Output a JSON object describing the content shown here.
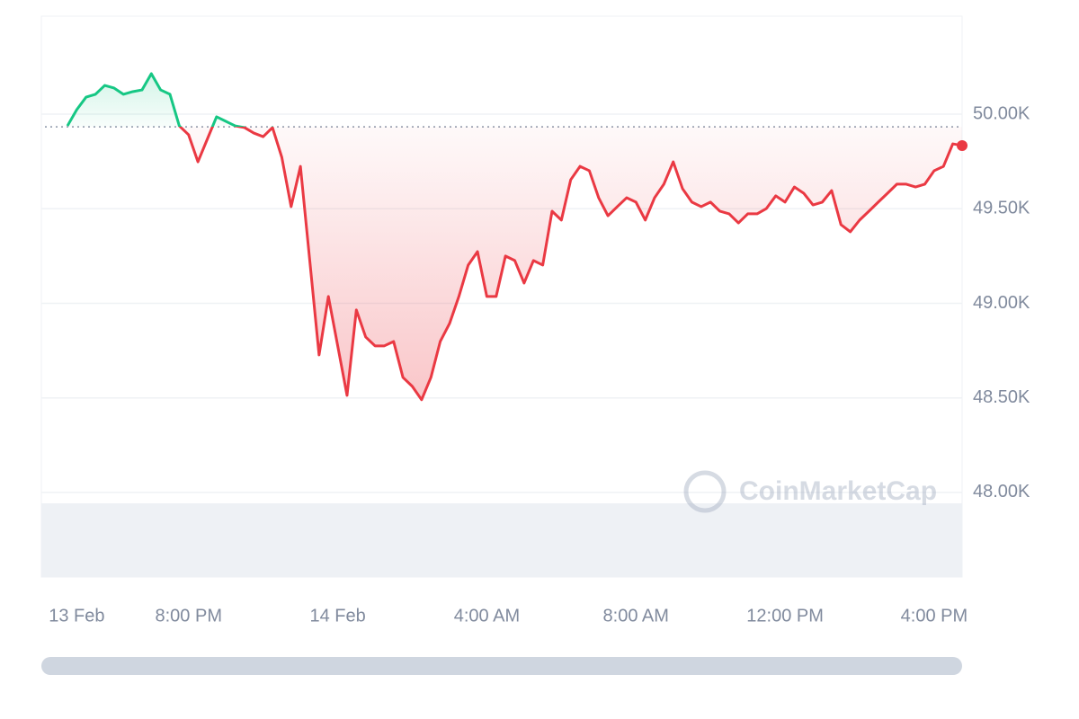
{
  "chart_data": {
    "type": "line",
    "watermark": "CoinMarketCap",
    "x": [
      16.75,
      17,
      17.25,
      17.5,
      17.75,
      18,
      18.25,
      18.5,
      18.75,
      19,
      19.25,
      19.5,
      19.75,
      20,
      20.25,
      20.5,
      20.75,
      21,
      21.25,
      21.5,
      21.75,
      22,
      22.25,
      22.5,
      22.75,
      23,
      23.25,
      23.5,
      23.75,
      24,
      24.25,
      24.5,
      24.75,
      25,
      25.25,
      25.5,
      25.75,
      26,
      26.25,
      26.5,
      26.75,
      27,
      27.25,
      27.5,
      27.75,
      28,
      28.25,
      28.5,
      28.75,
      29,
      29.25,
      29.5,
      29.75,
      30,
      30.25,
      30.5,
      30.75,
      31,
      31.25,
      31.5,
      31.75,
      32,
      32.25,
      32.5,
      32.75,
      33,
      33.25,
      33.5,
      33.75,
      34,
      34.25,
      34.5,
      34.75,
      35,
      35.25,
      35.5,
      35.75,
      36,
      36.25,
      36.5,
      36.75,
      37,
      37.25,
      37.5,
      37.75,
      38,
      38.25,
      38.5,
      38.75,
      39,
      39.25,
      39.5,
      39.75,
      40,
      40.25,
      40.5,
      40.75
    ],
    "values": [
      49938,
      50024,
      50090,
      50105,
      50152,
      50138,
      50105,
      50119,
      50128,
      50214,
      50128,
      50105,
      49938,
      49891,
      49748,
      49867,
      49986,
      49962,
      49938,
      49929,
      49900,
      49881,
      49929,
      49772,
      49511,
      49724,
      49226,
      48727,
      49036,
      48775,
      48513,
      48965,
      48822,
      48775,
      48775,
      48798,
      48608,
      48561,
      48490,
      48608,
      48798,
      48893,
      49036,
      49202,
      49273,
      49036,
      49036,
      49250,
      49226,
      49107,
      49226,
      49202,
      49487,
      49440,
      49653,
      49724,
      49701,
      49558,
      49463,
      49511,
      49558,
      49535,
      49440,
      49558,
      49630,
      49748,
      49606,
      49535,
      49511,
      49535,
      49487,
      49473,
      49425,
      49473,
      49473,
      49501,
      49568,
      49535,
      49615,
      49582,
      49520,
      49535,
      49596,
      49416,
      49378,
      49440,
      49487,
      49535,
      49582,
      49630,
      49630,
      49615,
      49630,
      49701,
      49724,
      49843,
      49834
    ],
    "baseline": 49933,
    "up_color": "#16c784",
    "down_color": "#ea3943",
    "xlim": [
      16.05,
      40.75
    ],
    "xticks": [
      {
        "value": 17,
        "label": "13 Feb"
      },
      {
        "value": 20,
        "label": "8:00 PM"
      },
      {
        "value": 24,
        "label": "14 Feb"
      },
      {
        "value": 28,
        "label": "4:00 AM"
      },
      {
        "value": 32,
        "label": "8:00 AM"
      },
      {
        "value": 36,
        "label": "12:00 PM"
      },
      {
        "value": 40,
        "label": "4:00 PM"
      }
    ],
    "ylim": [
      47553,
      50518
    ],
    "yticks": [
      {
        "value": 48000,
        "label": "48.00K"
      },
      {
        "value": 48500,
        "label": "48.50K"
      },
      {
        "value": 49000,
        "label": "49.00K"
      },
      {
        "value": 49500,
        "label": "49.50K"
      },
      {
        "value": 50000,
        "label": "50.00K"
      }
    ],
    "grid": true
  }
}
